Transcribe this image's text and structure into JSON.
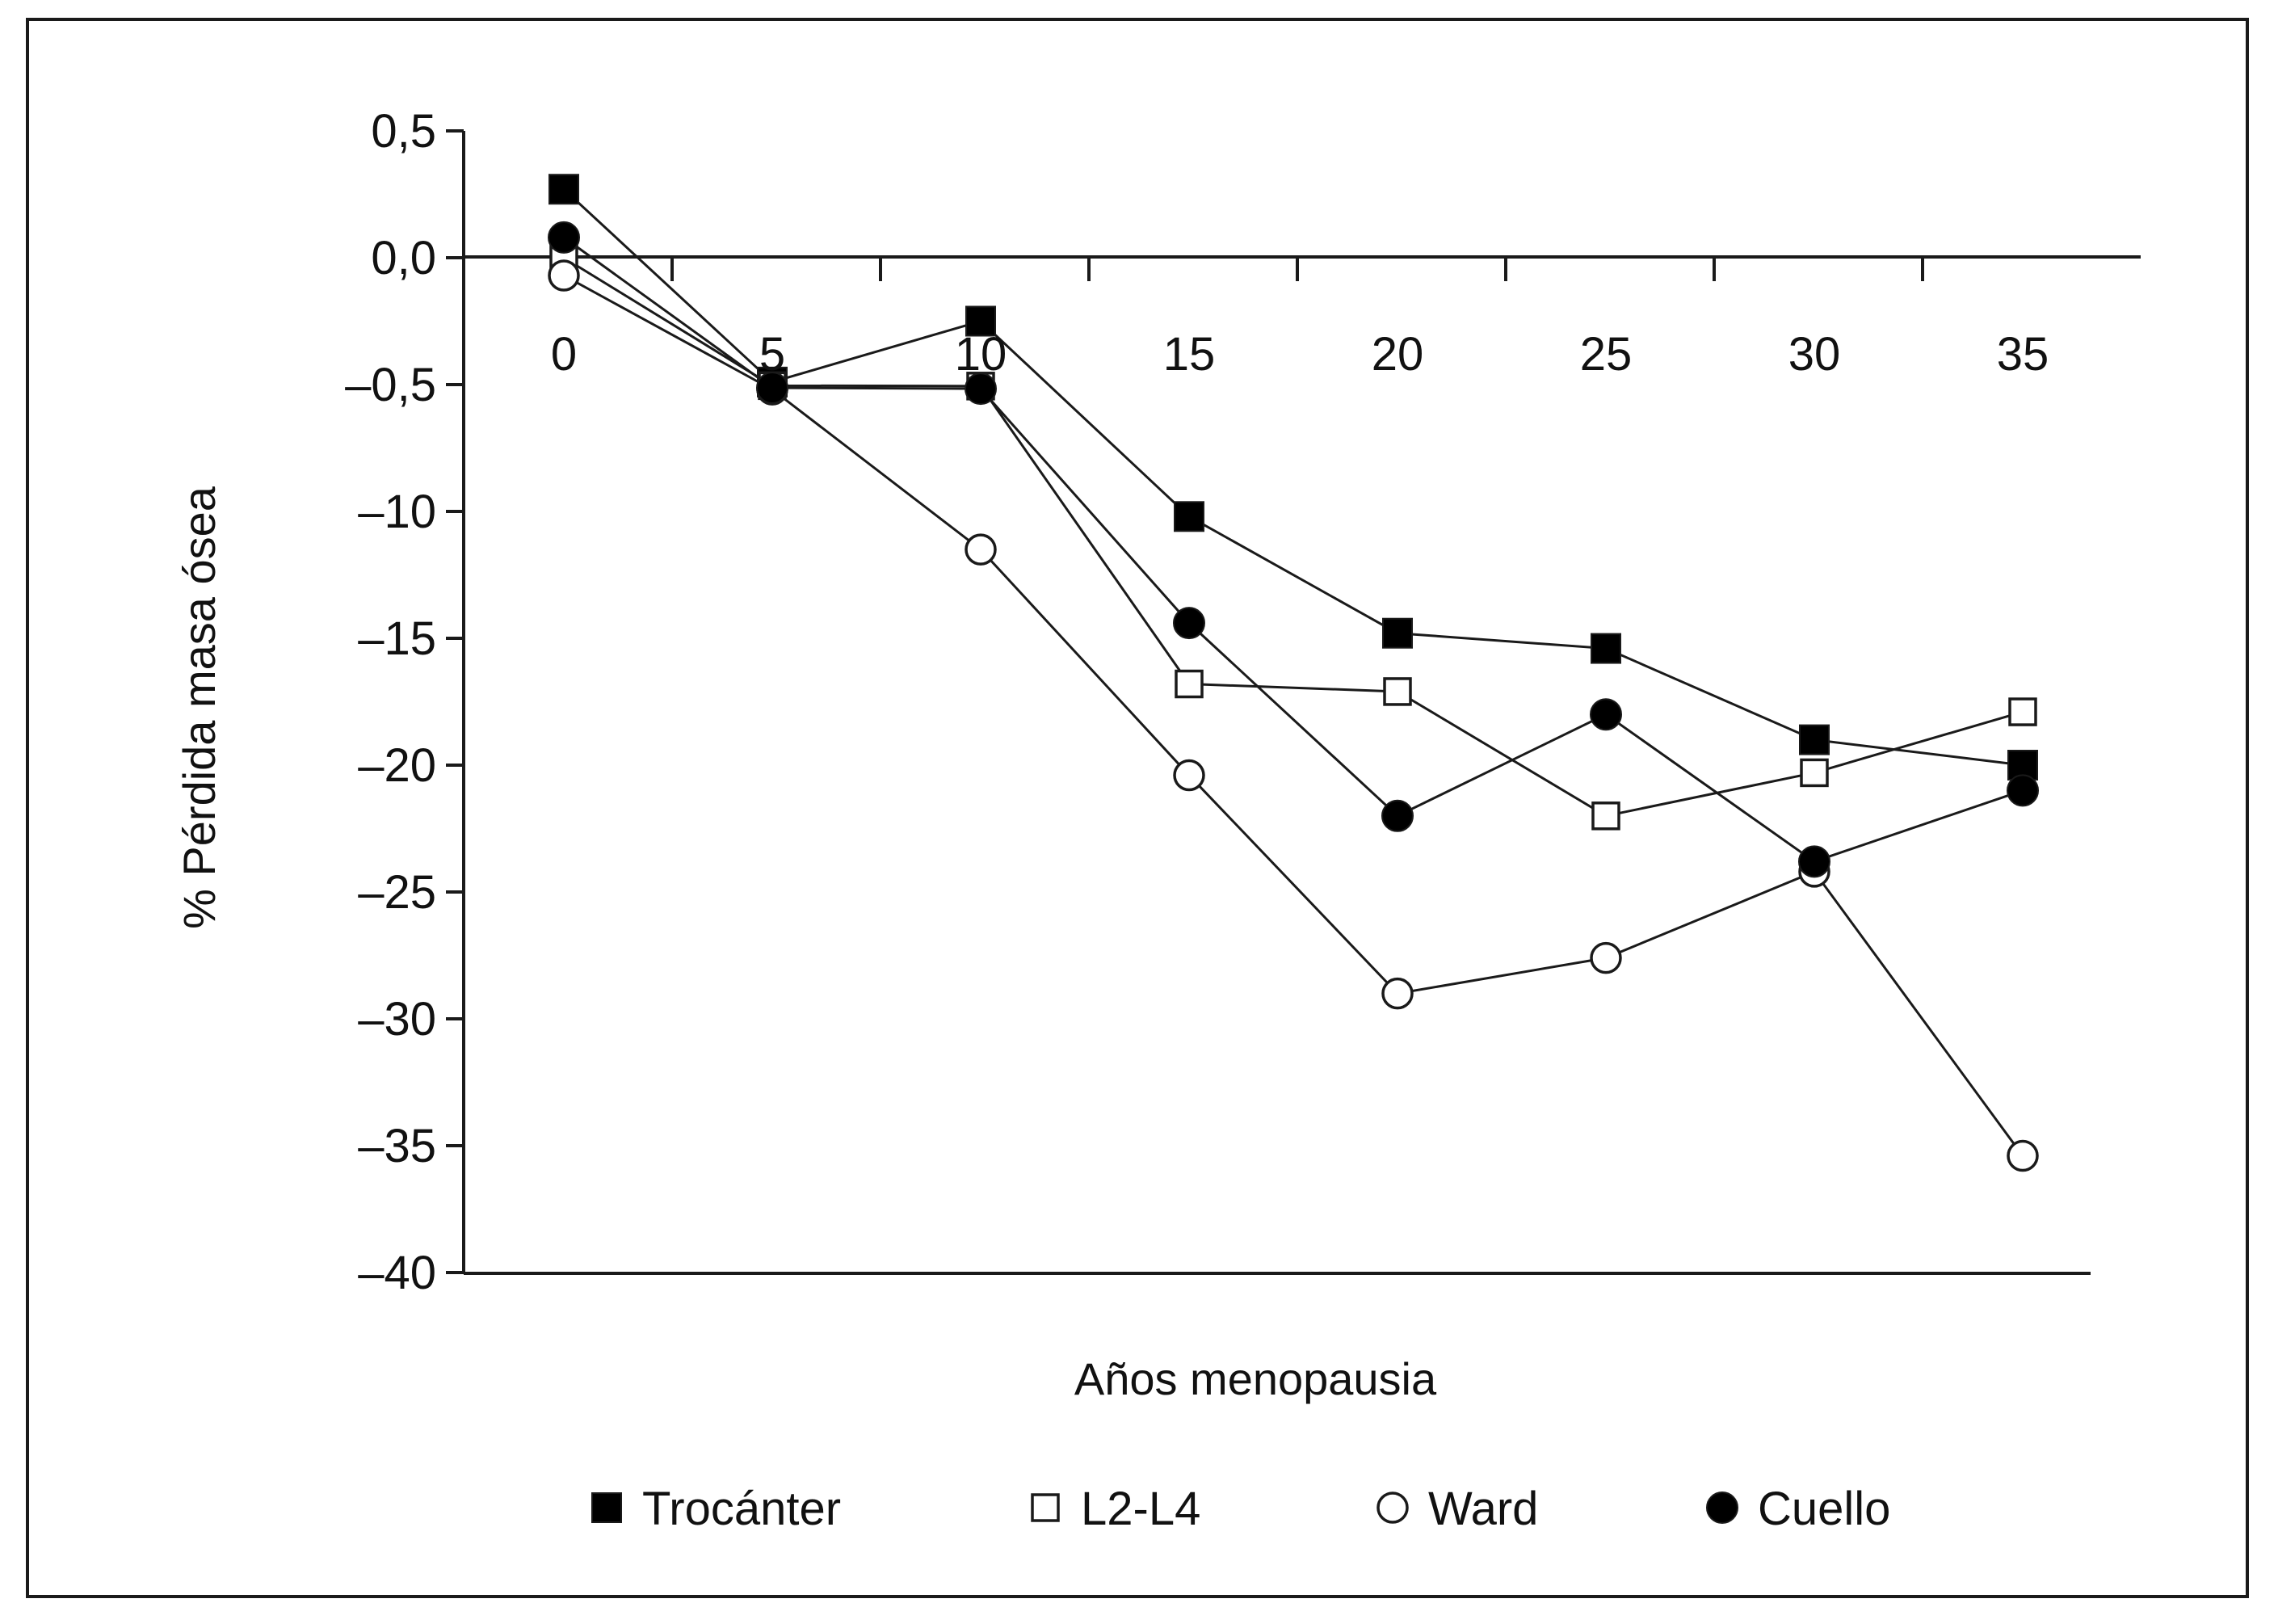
{
  "chart_data": {
    "type": "line",
    "title": "",
    "xlabel": "Años menopausia",
    "ylabel": "% Pérdida masa ósea",
    "x": [
      0,
      5,
      10,
      15,
      20,
      25,
      30,
      35
    ],
    "x_tick_labels": [
      "0",
      "5",
      "10",
      "15",
      "20",
      "25",
      "30",
      "35"
    ],
    "y_tick_labels": [
      "0,5",
      "0,0",
      "–0,5",
      "–10",
      "–15",
      "–20",
      "–25",
      "–30",
      "–35",
      "–40"
    ],
    "y_tick_values": [
      0.5,
      0.0,
      -0.5,
      -10,
      -15,
      -20,
      -25,
      -30,
      -35,
      -40
    ],
    "series": [
      {
        "name": "Trocánter",
        "marker": "filled-square",
        "values": [
          0.27,
          -0.49,
          -0.25,
          -10.2,
          -14.8,
          -15.4,
          -19.0,
          -20.0
        ]
      },
      {
        "name": "L2-L4",
        "marker": "open-square",
        "values": [
          0.0,
          -0.58,
          -0.61,
          -16.8,
          -17.1,
          -22.0,
          -20.3,
          -17.9
        ]
      },
      {
        "name": "Ward",
        "marker": "open-circle",
        "values": [
          -0.07,
          -0.87,
          -11.5,
          -20.4,
          -29.0,
          -27.6,
          -24.2,
          -35.4
        ]
      },
      {
        "name": "Cuello",
        "marker": "filled-circle",
        "values": [
          0.08,
          -0.74,
          -0.81,
          -14.4,
          -22.0,
          -18.0,
          -23.8,
          -21.0
        ]
      }
    ],
    "grid": false,
    "legend_position": "bottom",
    "colors": {
      "line": "#1a1a1a",
      "marker_fill": "#000000",
      "background": "#ffffff"
    }
  }
}
